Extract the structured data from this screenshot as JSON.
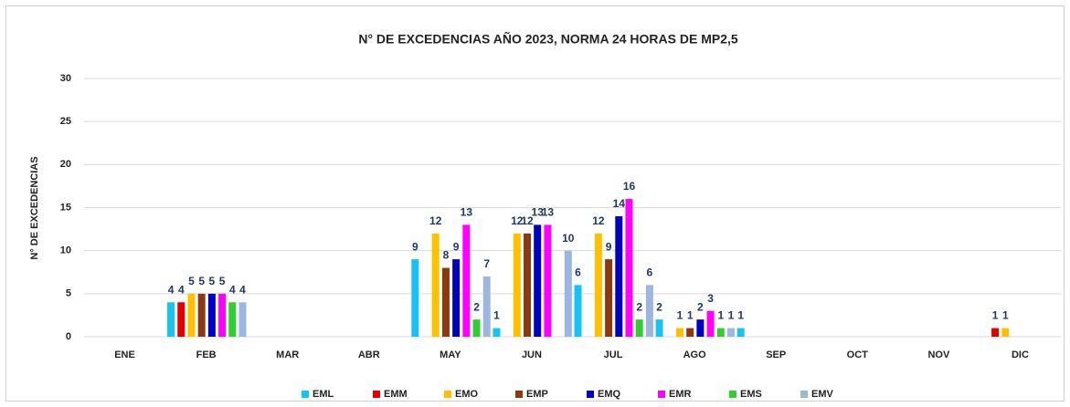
{
  "chart_data": {
    "type": "bar",
    "title": "N° DE EXCEDENCIAS AÑO 2023, NORMA 24 HORAS  DE MP2,5",
    "y_label": "N° DE EXCEDENCIAS",
    "categories": [
      "ENE",
      "FEB",
      "MAR",
      "ABR",
      "MAY",
      "JUN",
      "JUL",
      "AGO",
      "SEP",
      "OCT",
      "NOV",
      "DIC"
    ],
    "series": [
      {
        "name": "EML",
        "color": "#17c3f0",
        "values": [
          null,
          4,
          null,
          null,
          9,
          1,
          6,
          2,
          1,
          null,
          null,
          null
        ]
      },
      {
        "name": "EMM",
        "color": "#e00000",
        "values": [
          null,
          4,
          null,
          null,
          null,
          null,
          null,
          null,
          null,
          null,
          null,
          1
        ]
      },
      {
        "name": "EMO",
        "color": "#ffc000",
        "values": [
          null,
          5,
          null,
          null,
          12,
          12,
          12,
          1,
          null,
          null,
          null,
          1
        ]
      },
      {
        "name": "EMP",
        "color": "#8b3a0f",
        "values": [
          null,
          5,
          null,
          null,
          8,
          12,
          9,
          1,
          null,
          null,
          null,
          null
        ]
      },
      {
        "name": "EMQ",
        "color": "#0000c0",
        "values": [
          null,
          5,
          null,
          null,
          9,
          13,
          14,
          2,
          null,
          null,
          null,
          null
        ]
      },
      {
        "name": "EMR",
        "color": "#ff00ff",
        "values": [
          null,
          5,
          null,
          null,
          13,
          13,
          16,
          3,
          null,
          null,
          null,
          null
        ]
      },
      {
        "name": "EMS",
        "color": "#33cc33",
        "values": [
          null,
          4,
          null,
          null,
          2,
          null,
          2,
          1,
          null,
          null,
          null,
          null
        ]
      },
      {
        "name": "EMV",
        "color": "#9db6e0",
        "values": [
          null,
          4,
          null,
          null,
          7,
          10,
          6,
          1,
          null,
          null,
          null,
          null
        ]
      }
    ],
    "ylim": [
      0,
      30
    ],
    "yticks": [
      0,
      5,
      10,
      15,
      20,
      25,
      30
    ],
    "grid": true,
    "legend": "bottom"
  }
}
